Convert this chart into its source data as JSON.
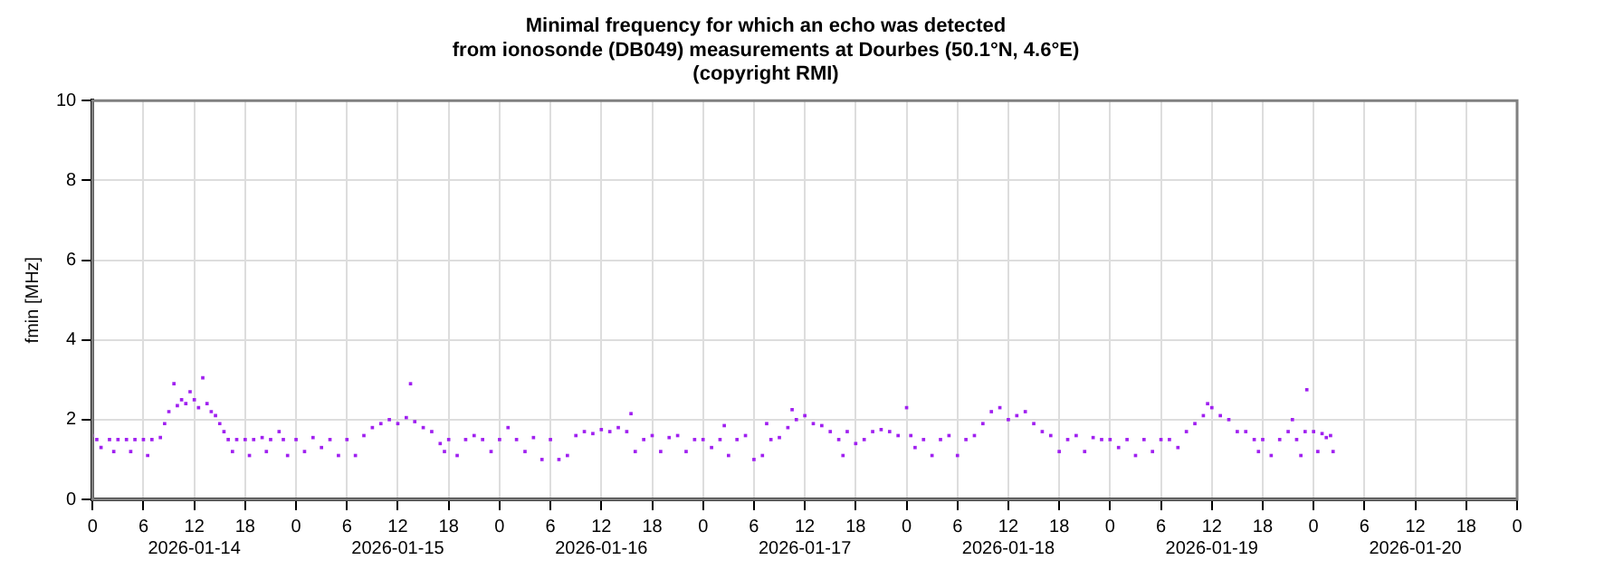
{
  "chart_data": {
    "type": "scatter",
    "title": "Minimal frequency for which an echo was detected\nfrom ionosonde (DB049) measurements at Dourbes (50.1°N, 4.6°E)\n(copyright RMI)",
    "ylabel": "fmin [MHz]",
    "x": [
      "2026-01-14T00:00",
      "2026-01-14T00:30",
      "2026-01-14T01:00",
      "2026-01-14T02:00",
      "2026-01-14T02:30",
      "2026-01-14T03:00",
      "2026-01-14T04:00",
      "2026-01-14T04:30",
      "2026-01-14T05:00",
      "2026-01-14T06:00",
      "2026-01-14T06:30",
      "2026-01-14T07:00",
      "2026-01-14T08:00",
      "2026-01-14T08:30",
      "2026-01-14T09:00",
      "2026-01-14T09:36",
      "2026-01-14T10:00",
      "2026-01-14T10:30",
      "2026-01-14T11:00",
      "2026-01-14T11:30",
      "2026-01-14T12:00",
      "2026-01-14T12:30",
      "2026-01-14T13:00",
      "2026-01-14T13:30",
      "2026-01-14T14:00",
      "2026-01-14T14:30",
      "2026-01-14T15:00",
      "2026-01-14T15:30",
      "2026-01-14T16:00",
      "2026-01-14T16:30",
      "2026-01-14T17:00",
      "2026-01-14T18:00",
      "2026-01-14T18:30",
      "2026-01-14T19:00",
      "2026-01-14T20:00",
      "2026-01-14T20:30",
      "2026-01-14T21:00",
      "2026-01-14T22:00",
      "2026-01-14T22:30",
      "2026-01-14T23:00",
      "2026-01-15T00:00",
      "2026-01-15T01:00",
      "2026-01-15T02:00",
      "2026-01-15T03:00",
      "2026-01-15T04:00",
      "2026-01-15T05:00",
      "2026-01-15T06:00",
      "2026-01-15T07:00",
      "2026-01-15T08:00",
      "2026-01-15T09:00",
      "2026-01-15T10:00",
      "2026-01-15T11:00",
      "2026-01-15T12:00",
      "2026-01-15T13:00",
      "2026-01-15T13:30",
      "2026-01-15T14:00",
      "2026-01-15T15:00",
      "2026-01-15T16:00",
      "2026-01-15T17:00",
      "2026-01-15T17:30",
      "2026-01-15T18:00",
      "2026-01-15T19:00",
      "2026-01-15T20:00",
      "2026-01-15T21:00",
      "2026-01-15T22:00",
      "2026-01-15T23:00",
      "2026-01-16T00:00",
      "2026-01-16T01:00",
      "2026-01-16T02:00",
      "2026-01-16T03:00",
      "2026-01-16T04:00",
      "2026-01-16T05:00",
      "2026-01-16T06:00",
      "2026-01-16T07:00",
      "2026-01-16T08:00",
      "2026-01-16T09:00",
      "2026-01-16T10:00",
      "2026-01-16T11:00",
      "2026-01-16T12:00",
      "2026-01-16T13:00",
      "2026-01-16T14:00",
      "2026-01-16T15:00",
      "2026-01-16T15:30",
      "2026-01-16T16:00",
      "2026-01-16T17:00",
      "2026-01-16T18:00",
      "2026-01-16T19:00",
      "2026-01-16T20:00",
      "2026-01-16T21:00",
      "2026-01-16T22:00",
      "2026-01-16T23:00",
      "2026-01-17T00:00",
      "2026-01-17T01:00",
      "2026-01-17T02:00",
      "2026-01-17T02:30",
      "2026-01-17T03:00",
      "2026-01-17T04:00",
      "2026-01-17T05:00",
      "2026-01-17T06:00",
      "2026-01-17T07:00",
      "2026-01-17T07:30",
      "2026-01-17T08:00",
      "2026-01-17T09:00",
      "2026-01-17T10:00",
      "2026-01-17T10:30",
      "2026-01-17T11:00",
      "2026-01-17T12:00",
      "2026-01-17T13:00",
      "2026-01-17T14:00",
      "2026-01-17T15:00",
      "2026-01-17T16:00",
      "2026-01-17T16:30",
      "2026-01-17T17:00",
      "2026-01-17T18:00",
      "2026-01-17T19:00",
      "2026-01-17T20:00",
      "2026-01-17T21:00",
      "2026-01-17T22:00",
      "2026-01-17T23:00",
      "2026-01-18T00:00",
      "2026-01-18T00:30",
      "2026-01-18T01:00",
      "2026-01-18T02:00",
      "2026-01-18T03:00",
      "2026-01-18T04:00",
      "2026-01-18T05:00",
      "2026-01-18T06:00",
      "2026-01-18T07:00",
      "2026-01-18T08:00",
      "2026-01-18T09:00",
      "2026-01-18T10:00",
      "2026-01-18T11:00",
      "2026-01-18T12:00",
      "2026-01-18T13:00",
      "2026-01-18T14:00",
      "2026-01-18T15:00",
      "2026-01-18T16:00",
      "2026-01-18T17:00",
      "2026-01-18T18:00",
      "2026-01-18T19:00",
      "2026-01-18T20:00",
      "2026-01-18T21:00",
      "2026-01-18T22:00",
      "2026-01-18T23:00",
      "2026-01-19T00:00",
      "2026-01-19T01:00",
      "2026-01-19T02:00",
      "2026-01-19T03:00",
      "2026-01-19T04:00",
      "2026-01-19T05:00",
      "2026-01-19T06:00",
      "2026-01-19T07:00",
      "2026-01-19T08:00",
      "2026-01-19T09:00",
      "2026-01-19T10:00",
      "2026-01-19T11:00",
      "2026-01-19T11:30",
      "2026-01-19T12:00",
      "2026-01-19T13:00",
      "2026-01-19T14:00",
      "2026-01-19T15:00",
      "2026-01-19T16:00",
      "2026-01-19T17:00",
      "2026-01-19T17:30",
      "2026-01-19T18:00",
      "2026-01-19T19:00",
      "2026-01-19T20:00",
      "2026-01-19T21:00",
      "2026-01-19T21:30",
      "2026-01-19T22:00",
      "2026-01-19T22:30",
      "2026-01-19T23:00",
      "2026-01-19T23:12",
      "2026-01-20T00:00",
      "2026-01-20T00:30",
      "2026-01-20T01:00",
      "2026-01-20T01:30",
      "2026-01-20T02:00",
      "2026-01-20T02:18"
    ],
    "series": [
      {
        "color": "#a020f0",
        "values": [
          1.6,
          1.5,
          1.3,
          1.5,
          1.2,
          1.5,
          1.5,
          1.2,
          1.5,
          1.5,
          1.1,
          1.5,
          1.55,
          1.9,
          2.2,
          2.9,
          2.35,
          2.5,
          2.4,
          2.7,
          2.5,
          2.3,
          3.05,
          2.4,
          2.2,
          2.1,
          1.9,
          1.7,
          1.5,
          1.2,
          1.5,
          1.5,
          1.1,
          1.5,
          1.55,
          1.2,
          1.5,
          1.7,
          1.5,
          1.1,
          1.5,
          1.2,
          1.55,
          1.3,
          1.5,
          1.1,
          1.5,
          1.1,
          1.6,
          1.8,
          1.9,
          2.0,
          1.9,
          2.05,
          2.9,
          1.95,
          1.8,
          1.7,
          1.4,
          1.2,
          1.5,
          1.1,
          1.5,
          1.6,
          1.5,
          1.2,
          1.5,
          1.8,
          1.5,
          1.2,
          1.55,
          1.0,
          1.5,
          1.0,
          1.1,
          1.6,
          1.7,
          1.65,
          1.75,
          1.7,
          1.8,
          1.7,
          2.15,
          1.2,
          1.5,
          1.6,
          1.2,
          1.55,
          1.6,
          1.2,
          1.5,
          1.5,
          1.3,
          1.5,
          1.85,
          1.1,
          1.5,
          1.6,
          1.0,
          1.1,
          1.9,
          1.5,
          1.55,
          1.8,
          2.25,
          2.0,
          2.1,
          1.9,
          1.85,
          1.7,
          1.5,
          1.1,
          1.7,
          1.4,
          1.5,
          1.7,
          1.75,
          1.7,
          1.6,
          2.3,
          1.6,
          1.3,
          1.5,
          1.1,
          1.5,
          1.6,
          1.1,
          1.5,
          1.6,
          1.9,
          2.2,
          2.3,
          2.0,
          2.1,
          2.2,
          1.9,
          1.7,
          1.6,
          1.2,
          1.5,
          1.6,
          1.2,
          1.55,
          1.5,
          1.5,
          1.3,
          1.5,
          1.1,
          1.5,
          1.2,
          1.5,
          1.5,
          1.3,
          1.7,
          1.9,
          2.1,
          2.4,
          2.3,
          2.1,
          2.0,
          1.7,
          1.7,
          1.5,
          1.2,
          1.5,
          1.1,
          1.5,
          1.7,
          2.0,
          1.5,
          1.1,
          1.7,
          2.75,
          1.7,
          1.2,
          1.65,
          1.55,
          1.6,
          1.2
        ]
      }
    ],
    "xlim": [
      "2026-01-14T00:00",
      "2026-01-21T00:00"
    ],
    "xticks": [
      {
        "value": "2026-01-14T00:00",
        "label": "0"
      },
      {
        "value": "2026-01-14T06:00",
        "label": "6"
      },
      {
        "value": "2026-01-14T12:00",
        "label": "12\n2026-01-14"
      },
      {
        "value": "2026-01-14T18:00",
        "label": "18"
      },
      {
        "value": "2026-01-15T00:00",
        "label": "0"
      },
      {
        "value": "2026-01-15T06:00",
        "label": "6"
      },
      {
        "value": "2026-01-15T12:00",
        "label": "12\n2026-01-15"
      },
      {
        "value": "2026-01-15T18:00",
        "label": "18"
      },
      {
        "value": "2026-01-16T00:00",
        "label": "0"
      },
      {
        "value": "2026-01-16T06:00",
        "label": "6"
      },
      {
        "value": "2026-01-16T12:00",
        "label": "12\n2026-01-16"
      },
      {
        "value": "2026-01-16T18:00",
        "label": "18"
      },
      {
        "value": "2026-01-17T00:00",
        "label": "0"
      },
      {
        "value": "2026-01-17T06:00",
        "label": "6"
      },
      {
        "value": "2026-01-17T12:00",
        "label": "12\n2026-01-17"
      },
      {
        "value": "2026-01-17T18:00",
        "label": "18"
      },
      {
        "value": "2026-01-18T00:00",
        "label": "0"
      },
      {
        "value": "2026-01-18T06:00",
        "label": "6"
      },
      {
        "value": "2026-01-18T12:00",
        "label": "12\n2026-01-18"
      },
      {
        "value": "2026-01-18T18:00",
        "label": "18"
      },
      {
        "value": "2026-01-19T00:00",
        "label": "0"
      },
      {
        "value": "2026-01-19T06:00",
        "label": "6"
      },
      {
        "value": "2026-01-19T12:00",
        "label": "12\n2026-01-19"
      },
      {
        "value": "2026-01-19T18:00",
        "label": "18"
      },
      {
        "value": "2026-01-20T00:00",
        "label": "0"
      },
      {
        "value": "2026-01-20T06:00",
        "label": "6"
      },
      {
        "value": "2026-01-20T12:00",
        "label": "12\n2026-01-20"
      },
      {
        "value": "2026-01-20T18:00",
        "label": "18"
      },
      {
        "value": "2026-01-21T00:00",
        "label": "0"
      }
    ],
    "ylim": [
      0,
      10
    ],
    "yticks": [
      0,
      2,
      4,
      6,
      8,
      10
    ],
    "grid": true,
    "legend": false,
    "marker": "square"
  }
}
